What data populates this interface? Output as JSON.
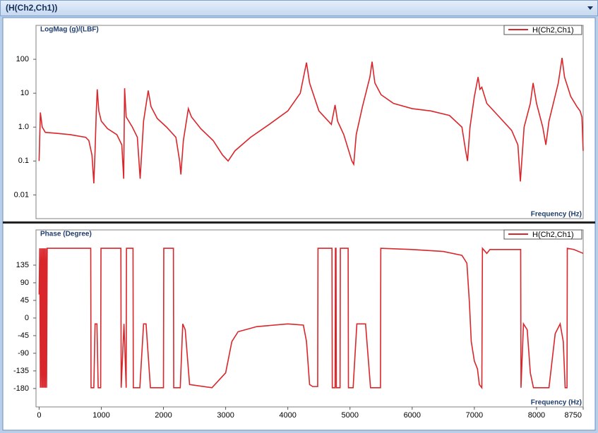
{
  "window_title": "(H(Ch2,Ch1))",
  "chart_data": [
    {
      "type": "line",
      "ylabel": "LogMag (g)/(LBF)",
      "xlabel": "Frequency (Hz)",
      "ylog": true,
      "xlim": [
        -50,
        8750
      ],
      "ylim": [
        0.002,
        1000
      ],
      "yticks": [
        100,
        10,
        {
          "value": 1,
          "label": "1.0"
        },
        0.1,
        0.01
      ],
      "legend": "upper right",
      "x": [
        0,
        20,
        50,
        100,
        300,
        500,
        750,
        800,
        850,
        880,
        900,
        920,
        935,
        960,
        1000,
        1100,
        1250,
        1330,
        1360,
        1375,
        1400,
        1500,
        1580,
        1625,
        1680,
        1755,
        1800,
        1900,
        2050,
        2200,
        2260,
        2280,
        2320,
        2400,
        2450,
        2600,
        2800,
        2950,
        3040,
        3150,
        3400,
        3700,
        4000,
        4200,
        4300,
        4350,
        4500,
        4700,
        4760,
        4800,
        4900,
        5030,
        5060,
        5100,
        5200,
        5320,
        5355,
        5400,
        5500,
        5700,
        6000,
        6300,
        6600,
        6800,
        6860,
        6890,
        6930,
        7000,
        7060,
        7090,
        7120,
        7200,
        7400,
        7600,
        7700,
        7740,
        7800,
        7900,
        7945,
        8000,
        8100,
        8150,
        8200,
        8350,
        8410,
        8450,
        8550,
        8650,
        8700,
        8730,
        8750
      ],
      "series": [
        {
          "name": "H(Ch2,Ch1)",
          "color": "#d9262b",
          "values": [
            0.1,
            2.7,
            1.0,
            0.7,
            0.65,
            0.6,
            0.5,
            0.4,
            0.15,
            0.022,
            0.2,
            3,
            13,
            3,
            1.5,
            0.9,
            0.6,
            0.3,
            0.03,
            14,
            2,
            1.0,
            0.5,
            0.03,
            1.5,
            12,
            4,
            1.8,
            1.0,
            0.5,
            0.1,
            0.04,
            0.4,
            3.5,
            2,
            0.9,
            0.4,
            0.15,
            0.1,
            0.2,
            0.5,
            1.2,
            3,
            10,
            80,
            20,
            3,
            1.2,
            4.5,
            1.5,
            0.6,
            0.1,
            0.08,
            0.6,
            4,
            30,
            85,
            20,
            9,
            5,
            3.5,
            3,
            2.2,
            1,
            0.2,
            0.1,
            1,
            8,
            30,
            13,
            15,
            5,
            2,
            0.8,
            0.3,
            0.025,
            1,
            5,
            20,
            5,
            1,
            0.3,
            1.5,
            20,
            110,
            30,
            8,
            4,
            3,
            2,
            0.2
          ]
        }
      ]
    },
    {
      "type": "line",
      "ylabel": "Phase (Degree)",
      "xlabel": "Frequency (Hz)",
      "xlim": [
        -50,
        8750
      ],
      "ylim": [
        -227,
        225
      ],
      "yticks": [
        135,
        90,
        45,
        0,
        -45,
        -90,
        -135,
        -180
      ],
      "xticks": [
        0,
        1000,
        2000,
        3000,
        4000,
        5000,
        6000,
        7000,
        8000,
        8750
      ],
      "legend": "upper right",
      "x": [
        0,
        10,
        20,
        30,
        40,
        50,
        60,
        70,
        80,
        90,
        100,
        110,
        120,
        130,
        140,
        830,
        835,
        880,
        900,
        930,
        950,
        990,
        995,
        1315,
        1320,
        1365,
        1400,
        1405,
        1510,
        1515,
        1620,
        1680,
        1720,
        1790,
        2000,
        2005,
        2160,
        2165,
        2270,
        2310,
        2350,
        2420,
        2780,
        3000,
        3100,
        3200,
        3500,
        4000,
        4250,
        4300,
        4350,
        4400,
        4480,
        4485,
        4710,
        4715,
        4760,
        4765,
        4775,
        4780,
        4840,
        4845,
        4970,
        4975,
        5050,
        5110,
        5250,
        5330,
        5490,
        5495,
        6000,
        6500,
        6800,
        6880,
        6920,
        6950,
        7000,
        7050,
        7080,
        7120,
        7130,
        7200,
        7250,
        7745,
        7750,
        7790,
        7850,
        7900,
        7950,
        8200,
        8300,
        8380,
        8430,
        8460,
        8490,
        8495,
        8600,
        8750
      ],
      "series": [
        {
          "name": "H(Ch2,Ch1)",
          "color": "#d9262b",
          "values": [
            60,
            178,
            -178,
            178,
            -178,
            178,
            -178,
            178,
            -178,
            178,
            -178,
            178,
            -178,
            178,
            178,
            178,
            -178,
            -178,
            -15,
            -15,
            -178,
            -178,
            178,
            178,
            -178,
            -15,
            -178,
            178,
            178,
            -178,
            -178,
            -15,
            -15,
            -178,
            -178,
            178,
            178,
            -178,
            -178,
            -15,
            -30,
            -170,
            -178,
            -140,
            -60,
            -35,
            -22,
            -15,
            -18,
            -60,
            -170,
            -175,
            -175,
            178,
            178,
            -178,
            -178,
            178,
            178,
            -178,
            -178,
            178,
            178,
            -178,
            -178,
            -15,
            -15,
            -178,
            -178,
            178,
            175,
            170,
            160,
            140,
            40,
            -60,
            -110,
            -130,
            -170,
            -178,
            178,
            165,
            175,
            175,
            -178,
            -15,
            -30,
            -140,
            -178,
            -178,
            -40,
            -15,
            -60,
            -178,
            -178,
            178,
            175,
            165
          ]
        }
      ]
    }
  ]
}
